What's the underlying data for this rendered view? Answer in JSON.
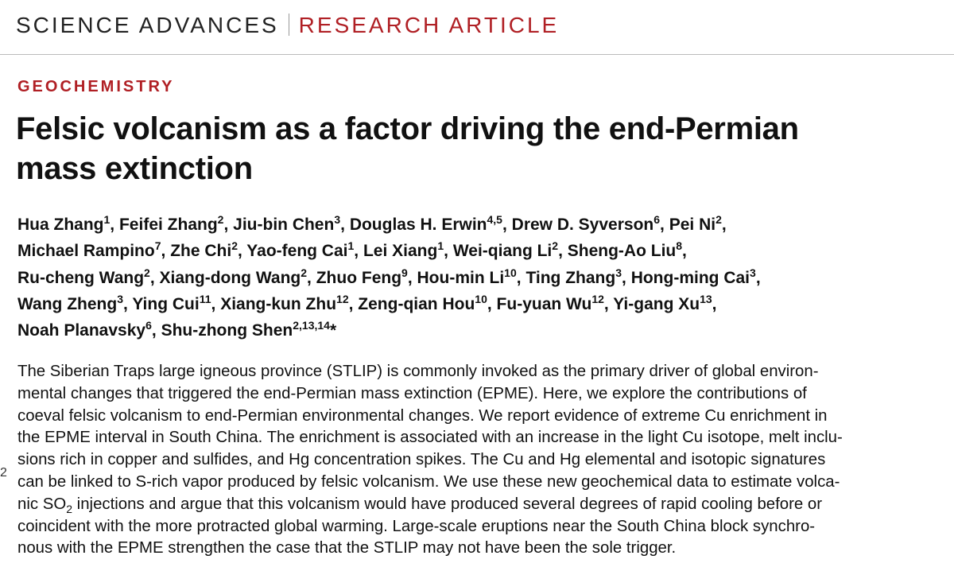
{
  "header": {
    "journal": "SCIENCE ADVANCES",
    "section": "RESEARCH ARTICLE"
  },
  "category": "GEOCHEMISTRY",
  "title_lines": [
    "Felsic volcanism as a factor driving the end-Permian",
    "mass extinction"
  ],
  "authors": {
    "delimiter": ",",
    "lines": [
      [
        {
          "name": "Hua Zhang",
          "sup": "1"
        },
        {
          "name": "Feifei Zhang",
          "sup": "2"
        },
        {
          "name": "Jiu-bin Chen",
          "sup": "3"
        },
        {
          "name": "Douglas H. Erwin",
          "sup": "4,5"
        },
        {
          "name": "Drew D. Syverson",
          "sup": "6"
        },
        {
          "name": "Pei Ni",
          "sup": "2"
        }
      ],
      [
        {
          "name": "Michael Rampino",
          "sup": "7"
        },
        {
          "name": "Zhe Chi",
          "sup": "2"
        },
        {
          "name": "Yao-feng Cai",
          "sup": "1"
        },
        {
          "name": "Lei Xiang",
          "sup": "1"
        },
        {
          "name": "Wei-qiang Li",
          "sup": "2"
        },
        {
          "name": "Sheng-Ao Liu",
          "sup": "8"
        }
      ],
      [
        {
          "name": "Ru-cheng Wang",
          "sup": "2"
        },
        {
          "name": "Xiang-dong Wang",
          "sup": "2"
        },
        {
          "name": "Zhuo Feng",
          "sup": "9"
        },
        {
          "name": "Hou-min Li",
          "sup": "10"
        },
        {
          "name": "Ting Zhang",
          "sup": "3"
        },
        {
          "name": "Hong-ming Cai",
          "sup": "3"
        }
      ],
      [
        {
          "name": "Wang Zheng",
          "sup": "3"
        },
        {
          "name": "Ying Cui",
          "sup": "11"
        },
        {
          "name": "Xiang-kun Zhu",
          "sup": "12"
        },
        {
          "name": "Zeng-qian Hou",
          "sup": "10"
        },
        {
          "name": "Fu-yuan Wu",
          "sup": "12"
        },
        {
          "name": "Yi-gang Xu",
          "sup": "13"
        }
      ],
      [
        {
          "name": "Noah Planavsky",
          "sup": "6"
        },
        {
          "name": "Shu-zhong Shen",
          "sup": "2,13,14",
          "mark": "*"
        }
      ]
    ]
  },
  "margin_mark": "2",
  "abstract_lines": [
    [
      "The Siberian Traps large igneous province (STLIP) is commonly invoked as the primary driver of global environ-"
    ],
    [
      "mental changes that triggered the end-Permian mass extinction (EPME). Here, we explore the contributions of"
    ],
    [
      "coeval felsic volcanism to end-Permian environmental changes. We report evidence of extreme Cu enrichment in"
    ],
    [
      "the EPME interval in South China. The enrichment is associated with an increase in the light Cu isotope, melt inclu-"
    ],
    [
      "sions rich in copper and sulfides, and Hg concentration spikes. The Cu and Hg elemental and isotopic signatures"
    ],
    [
      "can be linked to S-rich vapor produced by felsic volcanism. We use these new geochemical data to estimate volca-"
    ],
    [
      "nic SO",
      "2",
      " injections and argue that this volcanism would have produced several degrees of rapid cooling before or"
    ],
    [
      "coincident with the more protracted global warming. Large-scale eruptions near the South China block synchro-"
    ],
    [
      "nous with the EPME strengthen the case that the STLIP may not have been the sole trigger."
    ]
  ]
}
